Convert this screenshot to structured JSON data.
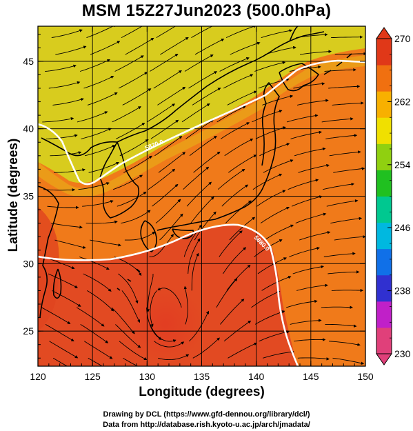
{
  "map": {
    "title": "MSM 15Z27Jun2023 (500.0hPa)",
    "x_axis_label": "Longitude (degrees)",
    "y_axis_label": "Latitude  (degrees)",
    "x_ticks": [
      "120",
      "125",
      "130",
      "135",
      "140",
      "145",
      "150"
    ],
    "y_ticks": [
      "25",
      "30",
      "35",
      "40",
      "45"
    ],
    "lon_range": [
      120,
      150
    ],
    "lat_range": [
      22.4,
      47.6
    ],
    "contour_labels": [
      "5820.0",
      "5880.0"
    ],
    "colorbar": {
      "unit_range": [
        230,
        270
      ],
      "labels": [
        "270",
        "262",
        "254",
        "246",
        "238",
        "230"
      ],
      "colors": [
        "#e0407a",
        "#c020c8",
        "#3030d0",
        "#1070e8",
        "#00b8e0",
        "#00c890",
        "#20c020",
        "#90d010",
        "#f0e000",
        "#f8b000",
        "#f07010",
        "#e03818"
      ]
    },
    "colors": {
      "warm_high": "#e23c22",
      "warm_mid": "#f07a1a",
      "cool": "#d8d21c",
      "contour": "#ffffff",
      "streamline": "#000000"
    }
  },
  "credits": {
    "line1": "Drawing by DCL (https://www.gfd-dennou.org/library/dcl/)",
    "line2": "Data from http://database.rish.kyoto-u.ac.jp/arch/jmadata/"
  }
}
